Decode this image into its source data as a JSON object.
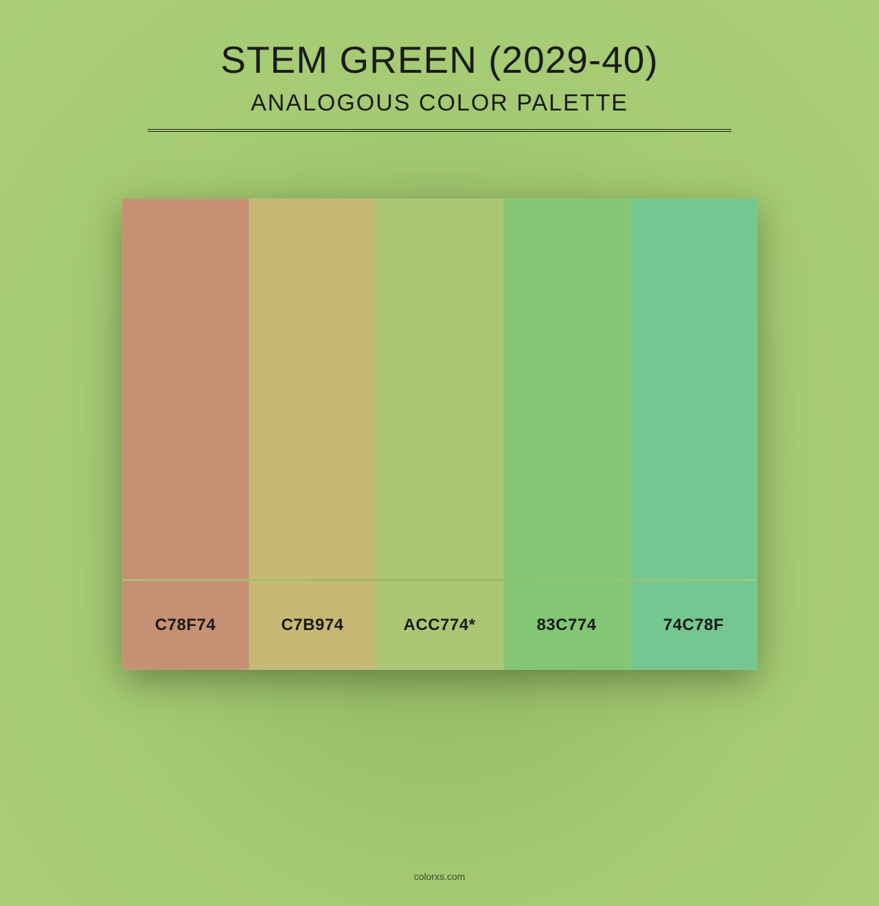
{
  "header": {
    "title": "STEM GREEN (2029-40)",
    "subtitle": "ANALOGOUS COLOR PALETTE"
  },
  "palette": {
    "background_color": "#a9ce76",
    "vignette_color": "#8db35f",
    "divider_color": "#1a1a1a",
    "text_color": "#1a1a1a",
    "title_fontsize": 55,
    "subtitle_fontsize": 34,
    "label_fontsize": 24,
    "swatch_height": 555,
    "label_height": 130,
    "container_width": 925,
    "swatches": [
      {
        "hex": "#c78f74",
        "label": "C78F74"
      },
      {
        "hex": "#c7b974",
        "label": "C7B974"
      },
      {
        "hex": "#acc774",
        "label": "ACC774*"
      },
      {
        "hex": "#83c774",
        "label": "83C774"
      },
      {
        "hex": "#74c78f",
        "label": "74C78F"
      }
    ]
  },
  "footer": {
    "text": "colorxs.com"
  }
}
